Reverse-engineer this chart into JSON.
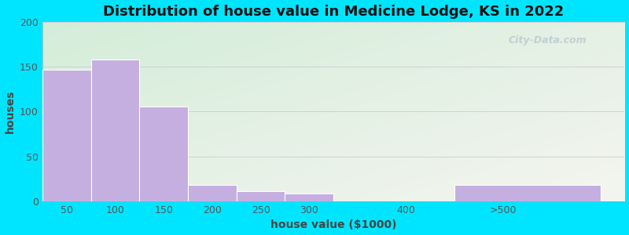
{
  "title": "Distribution of house value in Medicine Lodge, KS in 2022",
  "xlabel": "house value ($1000)",
  "ylabel": "houses",
  "bin_edges": [
    25,
    75,
    125,
    175,
    225,
    275,
    325,
    450,
    600
  ],
  "tick_positions": [
    50,
    100,
    150,
    200,
    250,
    300,
    400,
    500
  ],
  "tick_labels": [
    "50",
    "100",
    "150",
    "200",
    "250",
    "300",
    "400",
    ">500"
  ],
  "values": [
    147,
    158,
    106,
    18,
    11,
    9,
    0,
    18
  ],
  "bar_color": "#c5aee0",
  "bar_edgecolor": "#ffffff",
  "background_outer": "#00e5ff",
  "background_inner": "#e8f5e9",
  "ylim": [
    0,
    200
  ],
  "yticks": [
    0,
    50,
    100,
    150,
    200
  ],
  "xlim": [
    25,
    625
  ],
  "title_fontsize": 13,
  "axis_label_fontsize": 10,
  "tick_fontsize": 9,
  "watermark_text": "City-Data.com",
  "watermark_color": "#aabbc8",
  "watermark_alpha": 0.6
}
